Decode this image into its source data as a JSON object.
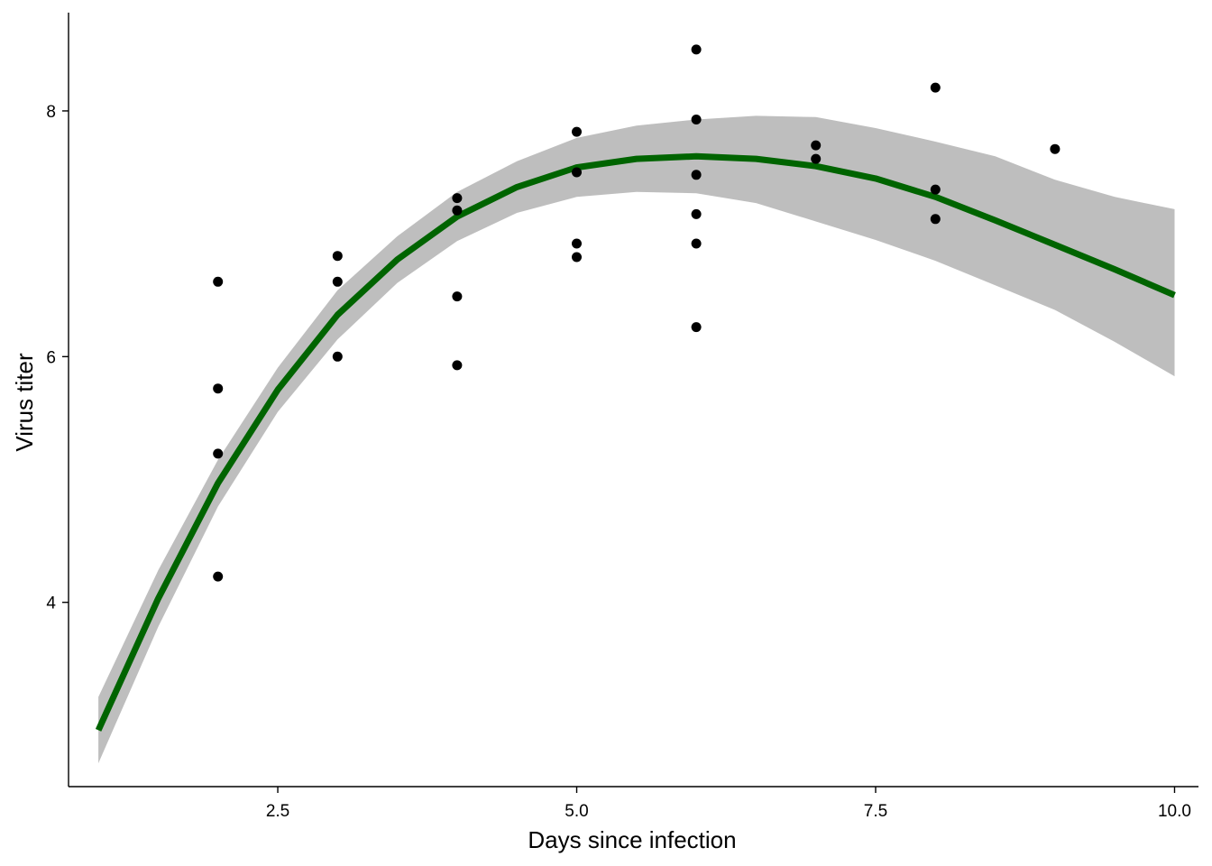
{
  "chart_data": {
    "type": "scatter",
    "title": "",
    "xlabel": "Days since infection",
    "ylabel": "Virus titer",
    "xlim": [
      0.75,
      10.2
    ],
    "ylim": [
      2.5,
      8.8
    ],
    "x_ticks": [
      2.5,
      5.0,
      7.5,
      10.0
    ],
    "x_tick_labels": [
      "2.5",
      "5.0",
      "7.5",
      "10.0"
    ],
    "y_ticks": [
      4,
      6,
      8
    ],
    "y_tick_labels": [
      "4",
      "6",
      "8"
    ],
    "grid": false,
    "legend": "none",
    "points": [
      {
        "x": 2,
        "y": 6.61
      },
      {
        "x": 2,
        "y": 5.74
      },
      {
        "x": 2,
        "y": 5.21
      },
      {
        "x": 2,
        "y": 4.21
      },
      {
        "x": 3,
        "y": 6.82
      },
      {
        "x": 3,
        "y": 6.61
      },
      {
        "x": 3,
        "y": 6.0
      },
      {
        "x": 4,
        "y": 7.29
      },
      {
        "x": 4,
        "y": 7.19
      },
      {
        "x": 4,
        "y": 6.49
      },
      {
        "x": 4,
        "y": 5.93
      },
      {
        "x": 5,
        "y": 7.83
      },
      {
        "x": 5,
        "y": 7.5
      },
      {
        "x": 5,
        "y": 6.92
      },
      {
        "x": 5,
        "y": 6.81
      },
      {
        "x": 6,
        "y": 8.5
      },
      {
        "x": 6,
        "y": 7.93
      },
      {
        "x": 6,
        "y": 7.48
      },
      {
        "x": 6,
        "y": 7.16
      },
      {
        "x": 6,
        "y": 6.92
      },
      {
        "x": 6,
        "y": 6.24
      },
      {
        "x": 7,
        "y": 7.72
      },
      {
        "x": 7,
        "y": 7.61
      },
      {
        "x": 8,
        "y": 8.19
      },
      {
        "x": 8,
        "y": 7.36
      },
      {
        "x": 8,
        "y": 7.12
      },
      {
        "x": 9,
        "y": 7.69
      }
    ],
    "fit": {
      "x": [
        1,
        1.5,
        2,
        2.5,
        3,
        3.5,
        4,
        4.5,
        5,
        5.5,
        6,
        6.5,
        7,
        7.5,
        8,
        8.5,
        9,
        9.5,
        10
      ],
      "y": [
        2.96,
        4.03,
        4.97,
        5.73,
        6.34,
        6.79,
        7.14,
        7.38,
        7.54,
        7.61,
        7.63,
        7.61,
        7.55,
        7.45,
        7.3,
        7.11,
        6.91,
        6.71,
        6.5
      ],
      "lower": [
        2.69,
        3.8,
        4.78,
        5.55,
        6.14,
        6.6,
        6.94,
        7.17,
        7.3,
        7.34,
        7.33,
        7.25,
        7.1,
        6.95,
        6.78,
        6.58,
        6.38,
        6.12,
        5.84
      ],
      "upper": [
        3.23,
        4.26,
        5.16,
        5.91,
        6.54,
        6.98,
        7.34,
        7.59,
        7.78,
        7.88,
        7.93,
        7.96,
        7.95,
        7.86,
        7.75,
        7.63,
        7.44,
        7.3,
        7.2
      ],
      "color": "#006400",
      "band_color": "#bebebe"
    },
    "point_color": "#000000"
  }
}
